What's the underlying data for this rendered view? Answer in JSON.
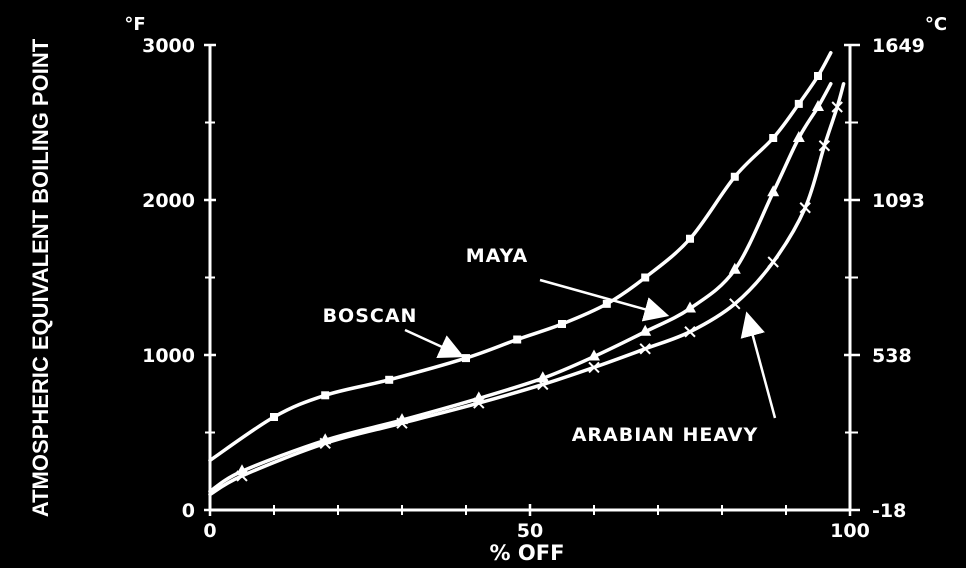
{
  "chart_data": {
    "type": "line",
    "title": "",
    "xlabel": "% OFF",
    "ylabel": "ATMOSPHERIC EQUIVALENT BOILING POINT",
    "left_unit": "°F",
    "right_unit": "°C",
    "xlim": [
      0,
      100
    ],
    "ylim_left": [
      0,
      3000
    ],
    "x_ticks": [
      "0",
      "50",
      "100"
    ],
    "y_ticks_left": [
      "0",
      "1000",
      "2000",
      "3000"
    ],
    "y_ticks_right": [
      "-18",
      "538",
      "1093",
      "1649"
    ],
    "grid": false,
    "legend": "none",
    "series": [
      {
        "name": "BOSCAN",
        "x": [
          0,
          10,
          18,
          28,
          40,
          48,
          55,
          62,
          68,
          75,
          82,
          88,
          92,
          95,
          97
        ],
        "y": [
          320,
          600,
          740,
          840,
          980,
          1100,
          1200,
          1330,
          1500,
          1750,
          2150,
          2400,
          2620,
          2800,
          2950
        ]
      },
      {
        "name": "MAYA",
        "x": [
          0,
          5,
          18,
          30,
          42,
          52,
          60,
          68,
          75,
          82,
          88,
          92,
          95,
          97
        ],
        "y": [
          120,
          250,
          450,
          580,
          720,
          850,
          990,
          1150,
          1300,
          1550,
          2050,
          2400,
          2600,
          2750
        ]
      },
      {
        "name": "ARABIAN HEAVY",
        "x": [
          0,
          5,
          18,
          30,
          42,
          52,
          60,
          68,
          75,
          82,
          88,
          93,
          96,
          98,
          99
        ],
        "y": [
          100,
          220,
          430,
          560,
          690,
          810,
          920,
          1040,
          1150,
          1330,
          1600,
          1950,
          2350,
          2600,
          2750
        ]
      }
    ],
    "annotations": [
      {
        "text": "MAYA",
        "target_series": "MAYA",
        "x": 71,
        "y": 1260
      },
      {
        "text": "BOSCAN",
        "target_series": "BOSCAN",
        "x": 39,
        "y": 1000
      },
      {
        "text": "ARABIAN HEAVY",
        "target_series": "ARABIAN HEAVY",
        "x": 84,
        "y": 1250
      }
    ],
    "colors": {
      "background": "#000000",
      "line": "#ffffff"
    }
  }
}
